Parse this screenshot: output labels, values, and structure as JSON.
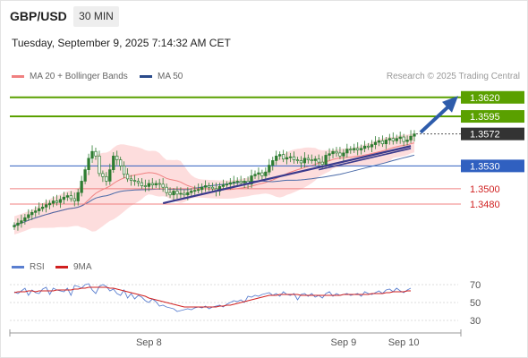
{
  "header": {
    "symbol": "GBP/USD",
    "timeframe": "30 MIN",
    "datetime": "Tuesday, September 9, 2025 7:14:32 AM CET"
  },
  "legend": {
    "ma20": "MA 20 + Bollinger Bands",
    "ma50": "MA 50",
    "credit": "Research © 2025 Trading Central"
  },
  "rsi_legend": {
    "rsi": "RSI",
    "ma": "9MA"
  },
  "colors": {
    "candle": "#2e7d32",
    "ma20": "#f08080",
    "bollinger_fill": "#fdd5d5",
    "ma50": "#4a6aa8",
    "resistance": "#5aa000",
    "support_blue": "#3060c0",
    "support_red": "#f08080",
    "trendline": "#3a3a8c",
    "arrow": "#2e5cab",
    "rsi": "#5a7fd0",
    "rsi_ma": "#d02020"
  },
  "price_tags": [
    {
      "label": "1.3620",
      "value": 1.362,
      "kind": "resistance"
    },
    {
      "label": "1.3595",
      "value": 1.3595,
      "kind": "resistance"
    },
    {
      "label": "1.3572",
      "value": 1.3572,
      "kind": "last"
    },
    {
      "label": "1.3530",
      "value": 1.353,
      "kind": "pivot"
    },
    {
      "label": "1.3500",
      "value": 1.35,
      "kind": "support"
    },
    {
      "label": "1.3480",
      "value": 1.348,
      "kind": "support"
    }
  ],
  "chart_data": [
    {
      "type": "candlestick",
      "x_labels": [
        {
          "label": "Sep 8",
          "index": 38
        },
        {
          "label": "Sep 9",
          "index": 93
        },
        {
          "label": "Sep 10",
          "index": 110
        }
      ],
      "ylim": [
        1.344,
        1.3635
      ],
      "grid": false,
      "series_close": [
        1.3452,
        1.3455,
        1.3458,
        1.3462,
        1.3466,
        1.3469,
        1.3471,
        1.3474,
        1.3476,
        1.3479,
        1.3481,
        1.3484,
        1.3482,
        1.3486,
        1.3489,
        1.3491,
        1.3487,
        1.3484,
        1.3495,
        1.351,
        1.3525,
        1.354,
        1.3549,
        1.3543,
        1.352,
        1.3516,
        1.351,
        1.3525,
        1.3543,
        1.3538,
        1.353,
        1.3519,
        1.3513,
        1.3511,
        1.351,
        1.3508,
        1.3504,
        1.3503,
        1.3507,
        1.3505,
        1.3507,
        1.3506,
        1.3502,
        1.3495,
        1.3492,
        1.3497,
        1.3493,
        1.3494,
        1.3492,
        1.3495,
        1.3497,
        1.3498,
        1.3499,
        1.3502,
        1.3504,
        1.3502,
        1.35,
        1.3497,
        1.3503,
        1.3505,
        1.3506,
        1.3508,
        1.3509,
        1.351,
        1.3508,
        1.351,
        1.3506,
        1.3517,
        1.3519,
        1.3521,
        1.3517,
        1.3522,
        1.3531,
        1.3537,
        1.3543,
        1.3545,
        1.3539,
        1.3541,
        1.3542,
        1.3538,
        1.3537,
        1.3534,
        1.354,
        1.3538,
        1.3537,
        1.3539,
        1.3535,
        1.3532,
        1.3544,
        1.3546,
        1.3549,
        1.3547,
        1.3543,
        1.3547,
        1.3552,
        1.3551,
        1.3553,
        1.3551,
        1.3553,
        1.3556,
        1.3555,
        1.3558,
        1.3561,
        1.3563,
        1.3559,
        1.3564,
        1.3566,
        1.3563,
        1.3566,
        1.3568,
        1.3562,
        1.3564,
        1.3569,
        1.3572
      ]
    },
    {
      "type": "line",
      "name": "RSI",
      "ylim": [
        20,
        75
      ],
      "y_ticks": [
        70,
        50,
        30
      ],
      "series": [
        {
          "name": "RSI",
          "values": [
            62,
            60,
            63,
            66,
            58,
            64,
            61,
            60,
            65,
            67,
            59,
            66,
            64,
            63,
            62,
            66,
            58,
            69,
            68,
            66,
            70,
            71,
            64,
            60,
            68,
            70,
            68,
            63,
            65,
            60,
            58,
            64,
            55,
            60,
            54,
            58,
            56,
            52,
            50,
            54,
            51,
            46,
            47,
            45,
            44,
            43,
            40,
            41,
            42,
            43,
            42,
            44,
            45,
            44,
            46,
            43,
            45,
            46,
            47,
            45,
            48,
            50,
            52,
            51,
            53,
            50,
            57,
            56,
            58,
            57,
            59,
            60,
            61,
            58,
            60,
            57,
            62,
            59,
            58,
            60,
            53,
            59,
            60,
            57,
            60,
            56,
            58,
            55,
            60,
            62,
            57,
            60,
            58,
            59,
            60,
            58,
            59,
            60,
            57,
            62,
            60,
            59,
            61,
            63,
            60,
            64,
            65,
            62,
            66,
            63,
            61,
            64,
            66
          ]
        },
        {
          "name": "9MA",
          "values": [
            61,
            62,
            62,
            62,
            63,
            63,
            62,
            63,
            63,
            63,
            63,
            63,
            64,
            64,
            64,
            64,
            64,
            65,
            65,
            66,
            66,
            67,
            67,
            67,
            67,
            67,
            67,
            66,
            66,
            65,
            64,
            63,
            62,
            61,
            60,
            59,
            58,
            57,
            55,
            54,
            53,
            52,
            51,
            50,
            49,
            48,
            47,
            46,
            45,
            45,
            45,
            45,
            45,
            45,
            45,
            45,
            45,
            45,
            46,
            46,
            47,
            47,
            48,
            49,
            50,
            51,
            52,
            53,
            54,
            55,
            56,
            57,
            58,
            58,
            58,
            59,
            59,
            59,
            59,
            59,
            59,
            58,
            58,
            58,
            58,
            58,
            58,
            58,
            58,
            58,
            58,
            58,
            58,
            59,
            59,
            59,
            59,
            59,
            59,
            59,
            59,
            60,
            60,
            60,
            60,
            61,
            61,
            62,
            62,
            62,
            62,
            63,
            63
          ]
        }
      ]
    }
  ]
}
